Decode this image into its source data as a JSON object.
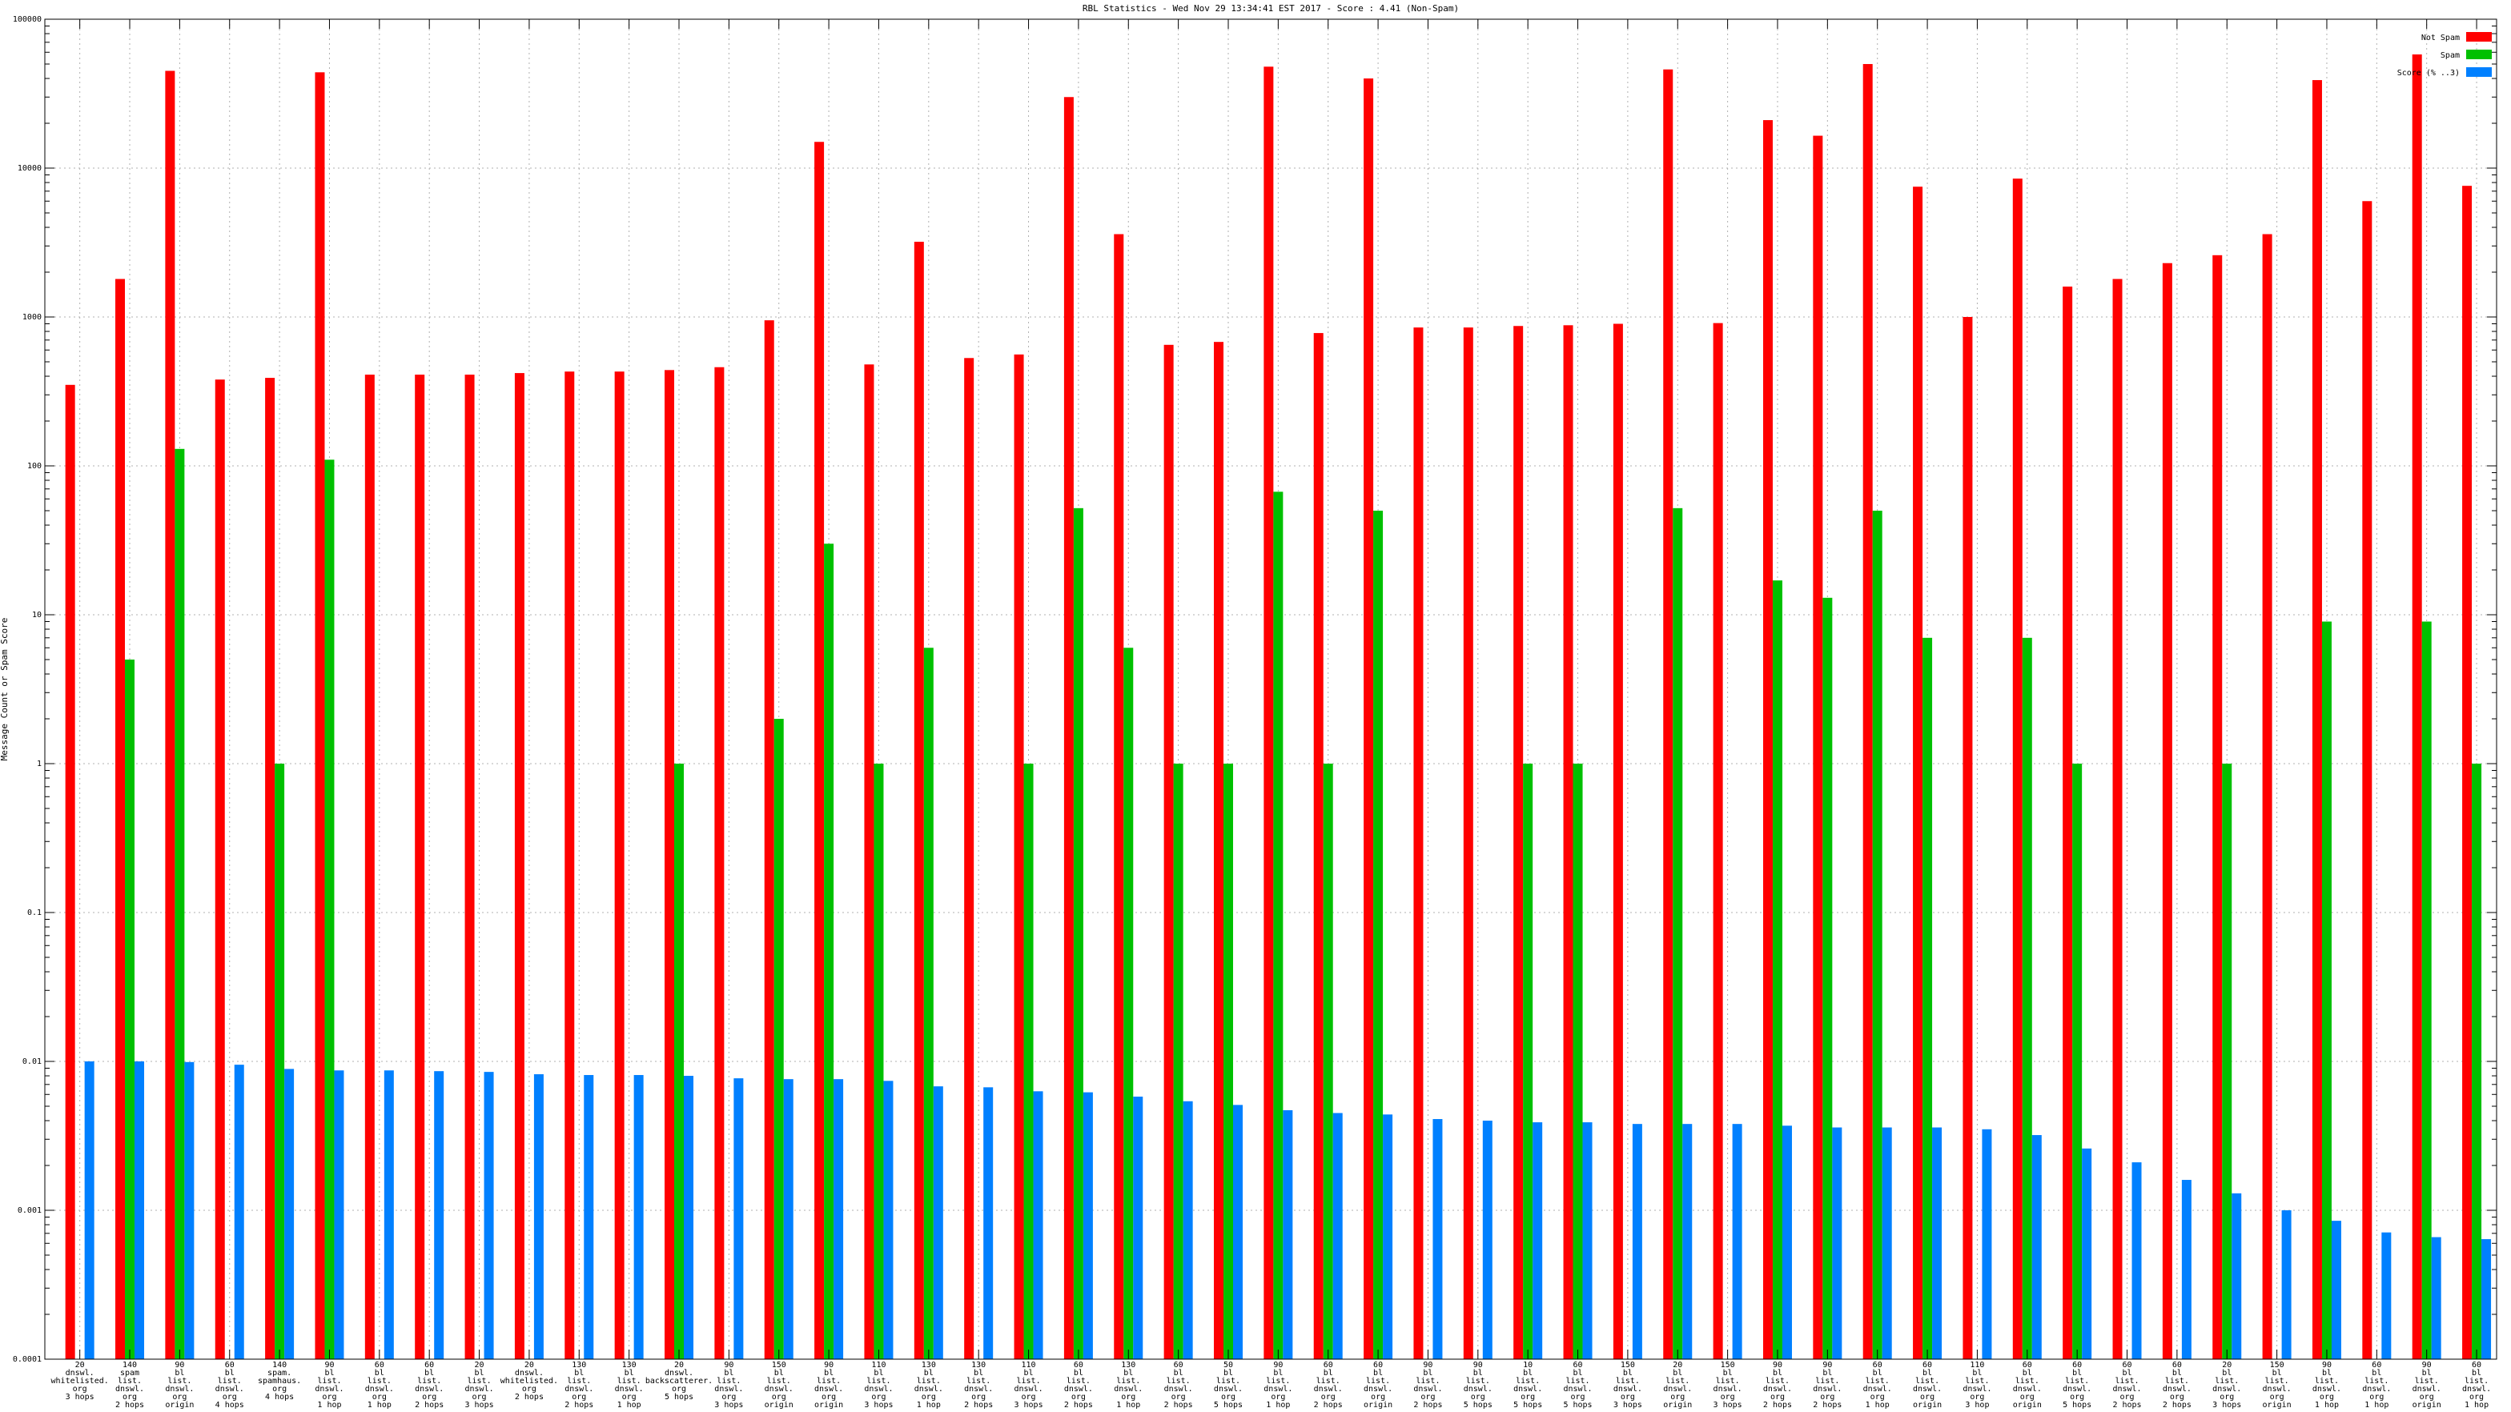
{
  "chart_data": {
    "type": "bar",
    "title": "RBL Statistics - Wed Nov 29 13:34:41 EST 2017 - Score : 4.41 (Non-Spam)",
    "ylabel": "Message Count or Spam Score",
    "xlabel": "",
    "yscale": "log",
    "ylim": [
      0.0001,
      100000
    ],
    "grid": true,
    "legend_position": "top-right",
    "y_ticks": [
      "0.0001",
      "0.001",
      "0.01",
      "0.1",
      "1",
      "10",
      "100",
      "1000",
      "10000",
      "100000"
    ],
    "categories": [
      "20\ndnswl.\nwhitelisted.\norg\n3 hops",
      "140\nspam\nlist.\ndnswl.\norg\n2 hops",
      "90\nbl\nlist.\ndnswl.\norg\norigin",
      "60\nbl\nlist.\ndnswl.\norg\n4 hops",
      "140\nspam.\nspamhaus.\norg\n4 hops",
      "90\nbl\nlist.\ndnswl.\norg\n1 hop",
      "60\nbl\nlist.\ndnswl.\norg\n1 hop",
      "60\nbl\nlist.\ndnswl.\norg\n2 hops",
      "20\nbl\nlist.\ndnswl.\norg\n3 hops",
      "20\ndnswl.\nwhitelisted.\norg\n2 hops",
      "130\nbl\nlist.\ndnswl.\norg\n2 hops",
      "130\nbl\nlist.\ndnswl.\norg\n1 hop",
      "20\ndnswl.\nbackscatterer.\norg\n5 hops",
      "90\nbl\nlist.\ndnswl.\norg\n3 hops",
      "150\nbl\nlist.\ndnswl.\norg\norigin",
      "90\nbl\nlist.\ndnswl.\norg\norigin",
      "110\nbl\nlist.\ndnswl.\norg\n3 hops",
      "130\nbl\nlist.\ndnswl.\norg\n1 hop",
      "130\nbl\nlist.\ndnswl.\norg\n2 hops",
      "110\nbl\nlist.\ndnswl.\norg\n3 hops",
      "60\nbl\nlist.\ndnswl.\norg\n2 hops",
      "130\nbl\nlist.\ndnswl.\norg\n1 hop",
      "60\nbl\nlist.\ndnswl.\norg\n2 hops",
      "50\nbl\nlist.\ndnswl.\norg\n5 hops",
      "90\nbl\nlist.\ndnswl.\norg\n1 hop",
      "60\nbl\nlist.\ndnswl.\norg\n2 hops",
      "60\nbl\nlist.\ndnswl.\norg\norigin",
      "90\nbl\nlist.\ndnswl.\norg\n2 hops",
      "90\nbl\nlist.\ndnswl.\norg\n5 hops",
      "10\nbl\nlist.\ndnswl.\norg\n5 hops",
      "60\nbl\nlist.\ndnswl.\norg\n5 hops",
      "150\nbl\nlist.\ndnswl.\norg\n3 hops",
      "20\nbl\nlist.\ndnswl.\norg\norigin",
      "150\nbl\nlist.\ndnswl.\norg\n3 hops",
      "90\nbl\nlist.\ndnswl.\norg\n2 hops",
      "90\nbl\nlist.\ndnswl.\norg\n2 hops",
      "60\nbl\nlist.\ndnswl.\norg\n1 hop",
      "60\nbl\nlist.\ndnswl.\norg\norigin",
      "110\nbl\nlist.\ndnswl.\norg\n3 hop",
      "60\nbl\nlist.\ndnswl.\norg\norigin",
      "60\nbl\nlist.\ndnswl.\norg\n5 hops",
      "60\nbl\nlist.\ndnswl.\norg\n2 hops",
      "60\nbl\nlist.\ndnswl.\norg\n2 hops",
      "20\nbl\nlist.\ndnswl.\norg\n3 hops",
      "150\nbl\nlist.\ndnswl.\norg\norigin",
      "90\nbl\nlist.\ndnswl.\norg\n1 hop",
      "60\nbl\nlist.\ndnswl.\norg\n1 hop",
      "90\nbl\nlist.\ndnswl.\norg\norigin",
      "60\nbl\nlist.\ndnswl.\norg\n1 hop"
    ],
    "series": [
      {
        "name": "Not Spam",
        "color": "#ff0000",
        "values": [
          350,
          1800,
          45000,
          380,
          390,
          44000,
          410,
          410,
          410,
          420,
          430,
          430,
          440,
          460,
          950,
          15000,
          480,
          3200,
          530,
          560,
          30000,
          3600,
          650,
          680,
          48000,
          780,
          40000,
          850,
          850,
          870,
          880,
          900,
          46000,
          910,
          21000,
          16500,
          50000,
          7500,
          1000,
          8500,
          1600,
          1800,
          2300,
          2600,
          3600,
          39000,
          6000,
          58000,
          7600
        ]
      },
      {
        "name": "Spam",
        "color": "#00c000",
        "values": [
          null,
          5,
          130,
          null,
          1,
          110,
          null,
          null,
          null,
          null,
          null,
          null,
          1,
          null,
          2,
          30,
          1,
          6,
          null,
          1,
          52,
          6,
          1,
          1,
          67,
          1,
          50,
          null,
          null,
          1,
          1,
          null,
          52,
          null,
          17,
          13,
          50,
          7,
          null,
          7,
          1,
          null,
          null,
          1,
          null,
          9,
          null,
          9,
          1
        ]
      },
      {
        "name": "Score (% ..3)",
        "color": "#0080ff",
        "values": [
          0.01,
          0.01,
          0.0099,
          0.0095,
          0.0089,
          0.0087,
          0.0087,
          0.0086,
          0.0085,
          0.0082,
          0.0081,
          0.0081,
          0.008,
          0.0077,
          0.0076,
          0.0076,
          0.0074,
          0.0068,
          0.0067,
          0.0063,
          0.0062,
          0.0058,
          0.0054,
          0.0051,
          0.0047,
          0.0045,
          0.0044,
          0.0041,
          0.004,
          0.0039,
          0.0039,
          0.0038,
          0.0038,
          0.0038,
          0.0037,
          0.0036,
          0.0036,
          0.0036,
          0.0035,
          0.0032,
          0.0026,
          0.0021,
          0.0016,
          0.0013,
          0.001,
          0.00085,
          0.00071,
          0.00066,
          0.00064
        ]
      }
    ]
  }
}
